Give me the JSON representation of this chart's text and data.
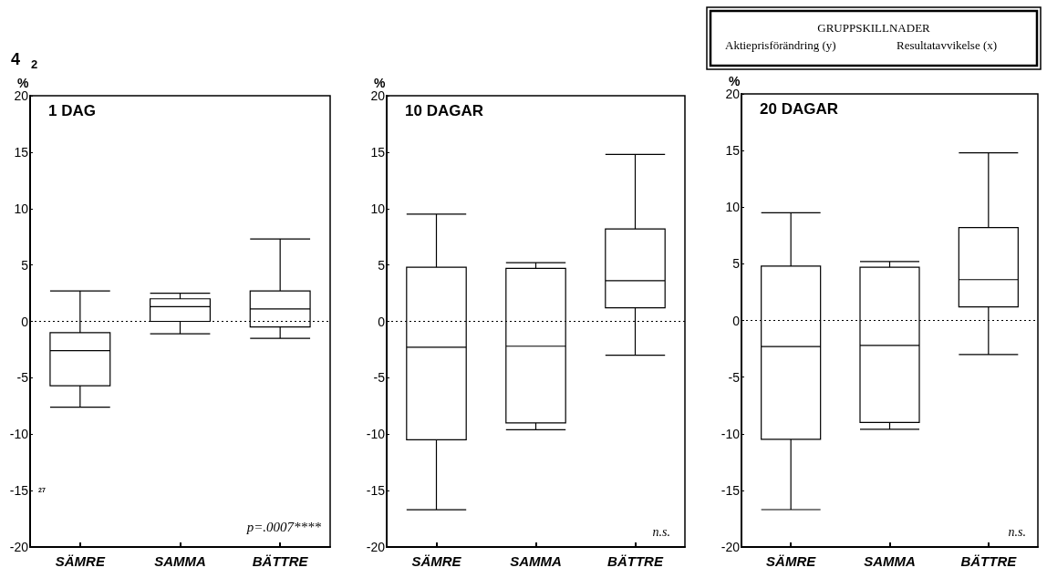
{
  "chart_data": [
    {
      "type": "box",
      "title": "1 DAG",
      "ylabel": "%",
      "categories": [
        "SÄMRE",
        "SAMMA",
        "BÄTTRE"
      ],
      "boxes": [
        {
          "low": -7.6,
          "q1": -5.7,
          "median": -2.6,
          "q3": -1.0,
          "high": 2.7
        },
        {
          "low": -1.1,
          "q1": 0,
          "median": 1.3,
          "q3": 2.0,
          "high": 2.5
        },
        {
          "low": -1.5,
          "q1": -0.5,
          "median": 1.1,
          "q3": 2.7,
          "high": 7.3
        }
      ],
      "color": "#000000",
      "ylim": [
        -20,
        20
      ],
      "yticks": [
        -20,
        -15,
        -10,
        -5,
        0,
        5,
        10,
        15,
        20
      ],
      "grid": false,
      "ref_lines": [
        {
          "axis": "y",
          "value": 0,
          "line_style": "dotted",
          "color": "#000000"
        }
      ],
      "annotations": [
        "p=.0007****",
        "4",
        "2",
        "27"
      ]
    },
    {
      "type": "box",
      "title": "10 DAGAR",
      "ylabel": "%",
      "categories": [
        "SÄMRE",
        "SAMMA",
        "BÄTTRE"
      ],
      "boxes": [
        {
          "low": -16.7,
          "q1": -10.5,
          "median": -2.3,
          "q3": 4.8,
          "high": 9.5
        },
        {
          "low": -9.6,
          "q1": -9.0,
          "median": -2.2,
          "q3": 4.7,
          "high": 5.2
        },
        {
          "low": -3.0,
          "q1": 1.2,
          "median": 3.6,
          "q3": 8.2,
          "high": 14.8
        }
      ],
      "color": "#000000",
      "ylim": [
        -20,
        20
      ],
      "yticks": [
        -20,
        -15,
        -10,
        -5,
        0,
        5,
        10,
        15,
        20
      ],
      "grid": false,
      "ref_lines": [
        {
          "axis": "y",
          "value": 0,
          "line_style": "dotted",
          "color": "#000000"
        }
      ],
      "annotations": [
        "n.s."
      ]
    },
    {
      "type": "box",
      "title": "20 DAGAR",
      "ylabel": "%",
      "categories": [
        "SÄMRE",
        "SAMMA",
        "BÄTTRE"
      ],
      "boxes": [
        {
          "low": -16.7,
          "q1": -10.5,
          "median": -2.3,
          "q3": 4.8,
          "high": 9.5
        },
        {
          "low": -9.6,
          "q1": -9.0,
          "median": -2.2,
          "q3": 4.7,
          "high": 5.2
        },
        {
          "low": -3.0,
          "q1": 1.2,
          "median": 3.6,
          "q3": 8.2,
          "high": 14.8
        }
      ],
      "color": "#000000",
      "ylim": [
        -20,
        20
      ],
      "yticks": [
        -20,
        -15,
        -10,
        -5,
        0,
        5,
        10,
        15,
        20
      ],
      "grid": false,
      "ref_lines": [
        {
          "axis": "y",
          "value": 0,
          "line_style": "dotted",
          "color": "#000000"
        }
      ],
      "annotations": [
        "GRUPPSKILLNADER",
        "Aktieprisförändring (y)",
        "Resultatavvikelse (x)",
        "n.s."
      ]
    }
  ]
}
